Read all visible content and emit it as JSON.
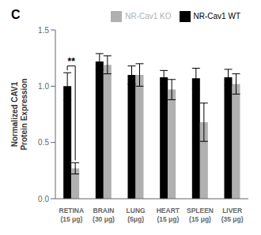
{
  "chart_data": {
    "type": "bar",
    "title": "C",
    "ylabel": "Normalized CAV1\nProtein Expression",
    "categories": [
      "RETINA\n(15 μg)",
      "BRAIN\n(30 μg)",
      "LUNG\n(5μg)",
      "HEART\n(15 μg)",
      "SPLEEN\n(15 μg)",
      "LIVER\n(35 μg)"
    ],
    "series": [
      {
        "name": "NR-Cav1 WT",
        "color": "#000000",
        "values": [
          1.0,
          1.22,
          1.1,
          1.08,
          1.07,
          1.08
        ],
        "errors": [
          0.12,
          0.07,
          0.08,
          0.06,
          0.09,
          0.07
        ]
      },
      {
        "name": "NR-Cav1 KO",
        "color": "#b0b0b0",
        "values": [
          0.27,
          1.19,
          1.1,
          0.97,
          0.68,
          1.02
        ],
        "errors": [
          0.05,
          0.08,
          0.1,
          0.09,
          0.17,
          0.09
        ]
      }
    ],
    "ylim": [
      0.0,
      1.5
    ],
    "yticks": [
      {
        "value": 0,
        "label": "0.0"
      },
      0.5,
      {
        "value": 1,
        "label": "1.0"
      },
      1.5
    ],
    "legend": "upper right",
    "grid": false,
    "annotations": [
      {
        "text": "**",
        "x": "RETINA\n(15 μg)",
        "y": 1.18
      }
    ]
  }
}
